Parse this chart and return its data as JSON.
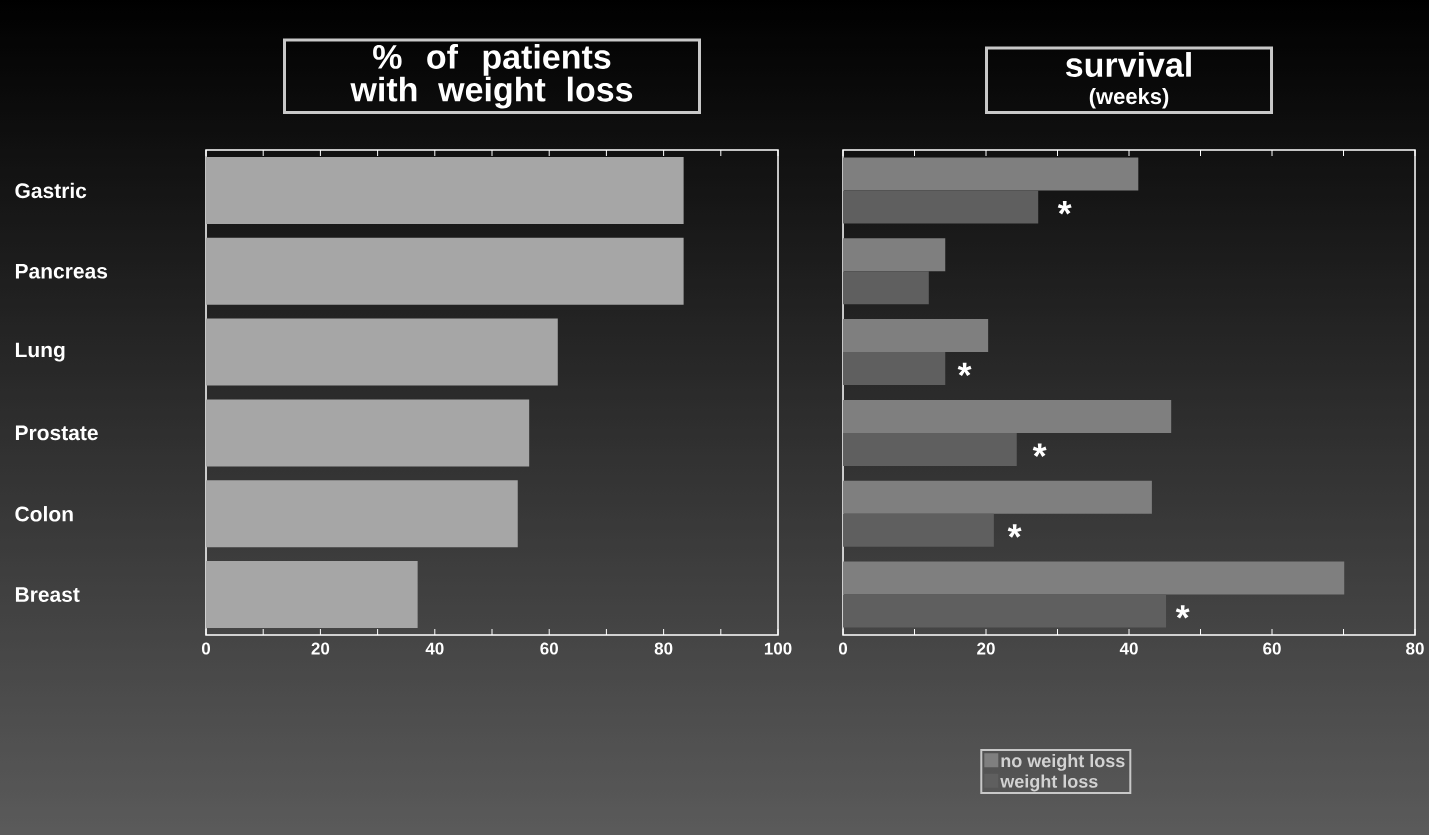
{
  "chart_data": [
    {
      "type": "bar",
      "orientation": "horizontal",
      "title": "% of patients\nwith weight loss",
      "categories": [
        "Gastric",
        "Pancreas",
        "Lung",
        "Prostate",
        "Colon",
        "Breast"
      ],
      "values": [
        83.5,
        83.5,
        61.5,
        56.5,
        54.5,
        37
      ],
      "color": "#a6a6a6",
      "xlim": [
        0,
        100
      ],
      "xticks": [
        0,
        {
          "value": 10,
          "label": null
        },
        20,
        {
          "value": 30,
          "label": null
        },
        40,
        {
          "value": 50,
          "label": null
        },
        60,
        {
          "value": 70,
          "label": null
        },
        80,
        {
          "value": 90,
          "label": null
        },
        100
      ]
    },
    {
      "type": "bar",
      "orientation": "horizontal",
      "title": "survival",
      "subtitle": "(weeks)",
      "categories": [
        "Gastric",
        "Pancreas",
        "Lung",
        "Prostate",
        "Colon",
        "Breast"
      ],
      "tick_labels": "x",
      "series": [
        {
          "name": "no weight loss",
          "color": "#7f7f7f",
          "values": [
            41.3,
            14.3,
            20.3,
            45.9,
            43.2,
            70.1
          ]
        },
        {
          "name": "weight loss",
          "color": "#5f5f5f",
          "values": [
            27.3,
            12,
            14.3,
            24.3,
            21.1,
            45.2
          ]
        }
      ],
      "xlim": [
        0,
        80
      ],
      "xticks": [
        0,
        {
          "value": 10,
          "label": null
        },
        20,
        {
          "value": 30,
          "label": null
        },
        40,
        {
          "value": 50,
          "label": null
        },
        60,
        {
          "value": 70,
          "label": null
        },
        80
      ],
      "legend": "bottom",
      "annotations": [
        {
          "text": "*",
          "x": 31,
          "y": "Gastric"
        },
        {
          "text": "*",
          "x": 17,
          "y": "Lung"
        },
        {
          "text": "*",
          "x": 27.5,
          "y": "Prostate"
        },
        {
          "text": "*",
          "x": 24,
          "y": "Colon"
        },
        {
          "text": "*",
          "x": 47.5,
          "y": "Breast"
        }
      ]
    }
  ]
}
